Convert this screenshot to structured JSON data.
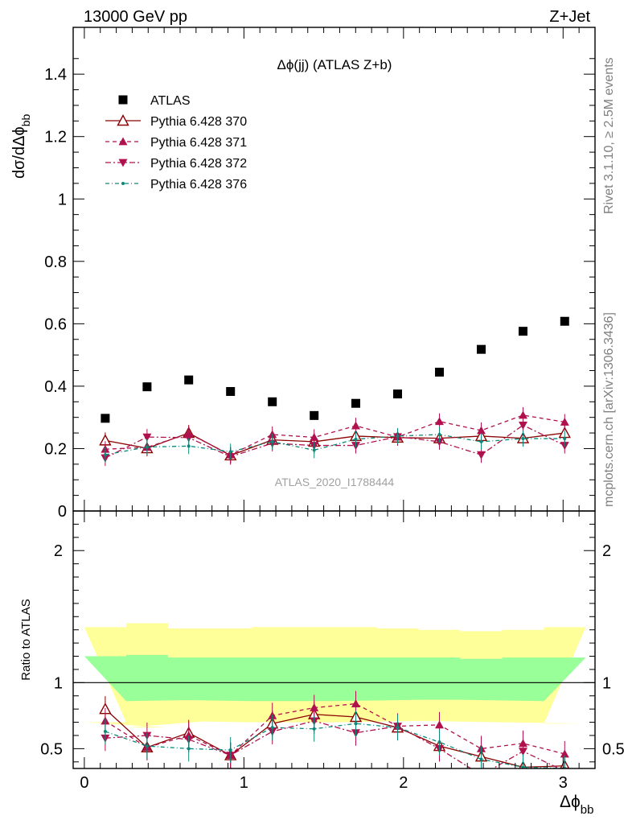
{
  "header": {
    "left": "13000 GeV pp",
    "right": "Z+Jet"
  },
  "side_text": {
    "rivet": "Rivet 3.1.10, ≥ 2.5M events",
    "mcplots": "mcplots.cern.ch [arXiv:1306.3436]"
  },
  "analysis_id": "ATLAS_2020_I1788444",
  "chart_data": [
    {
      "type": "scatter",
      "title": "Δϕ(jj) (ATLAS Z+b)",
      "ylabel_main": "dσ/dΔϕ",
      "ylabel_sub": "bb",
      "xlabel_main": "Δϕ",
      "xlabel_sub": "bb",
      "xlim": [
        -0.07,
        3.2
      ],
      "ylim": [
        0,
        1.55
      ],
      "y_ticks": [
        "0",
        "0.2",
        "0.4",
        "0.6",
        "0.8",
        "1",
        "1.2",
        "1.4"
      ],
      "y_tick_values": [
        0,
        0.2,
        0.4,
        0.6,
        0.8,
        1.0,
        1.2,
        1.4
      ],
      "x": [
        0.131,
        0.393,
        0.654,
        0.916,
        1.178,
        1.44,
        1.701,
        1.963,
        2.225,
        2.487,
        2.749,
        3.01
      ],
      "legend": [
        "ATLAS",
        "Pythia 6.428 370",
        "Pythia 6.428 371",
        "Pythia 6.428 372",
        "Pythia 6.428 376"
      ],
      "series": [
        {
          "name": "ATLAS",
          "color": "#000000",
          "marker": "square",
          "values": [
            0.297,
            0.398,
            0.42,
            0.383,
            0.35,
            0.306,
            0.345,
            0.375,
            0.445,
            0.518,
            0.576,
            0.608
          ]
        },
        {
          "name": "Pythia 6.428 370",
          "color": "#8b0000",
          "marker": "triangle-open",
          "values": [
            0.226,
            0.201,
            0.25,
            0.178,
            0.228,
            0.222,
            0.24,
            0.235,
            0.233,
            0.24,
            0.233,
            0.25
          ]
        },
        {
          "name": "Pythia 6.428 371",
          "color": "#b0104e",
          "marker": "triangle-up",
          "values": [
            0.198,
            0.204,
            0.248,
            0.18,
            0.245,
            0.236,
            0.273,
            0.237,
            0.287,
            0.258,
            0.307,
            0.285
          ]
        },
        {
          "name": "Pythia 6.428 372",
          "color": "#b0104e",
          "marker": "triangle-down",
          "values": [
            0.17,
            0.237,
            0.235,
            0.174,
            0.217,
            0.21,
            0.21,
            0.238,
            0.222,
            0.18,
            0.275,
            0.21
          ]
        },
        {
          "name": "Pythia 6.428 376",
          "color": "#0a8a7a",
          "marker": "dot",
          "values": [
            0.18,
            0.205,
            0.208,
            0.19,
            0.222,
            0.195,
            0.23,
            0.24,
            0.245,
            0.222,
            0.232,
            0.232
          ]
        }
      ]
    },
    {
      "type": "line",
      "ylabel": "Ratio to ATLAS",
      "ylim": [
        0.35,
        2.3
      ],
      "y_ticks": [
        "0.5",
        "1",
        "2"
      ],
      "y_tick_values": [
        0.5,
        1.0,
        2.0
      ],
      "x_ticks": [
        "0",
        "1",
        "2",
        "3"
      ],
      "x_tick_values": [
        0,
        1,
        2,
        3
      ],
      "band_edges": [
        0.0,
        0.262,
        0.524,
        0.785,
        1.047,
        1.309,
        1.571,
        1.833,
        2.094,
        2.356,
        2.618,
        2.88,
        3.142
      ],
      "band_1sigma": {
        "color": "#99ff99",
        "low": [
          0.86,
          0.86,
          0.87,
          0.86,
          0.86,
          0.86,
          0.86,
          0.87,
          0.87,
          0.87,
          0.86,
          0.86
        ],
        "high": [
          1.2,
          1.21,
          1.19,
          1.19,
          1.19,
          1.19,
          1.19,
          1.19,
          1.19,
          1.18,
          1.19,
          1.19
        ]
      },
      "band_2sigma": {
        "color": "#ffff99",
        "low": [
          0.7,
          0.66,
          0.71,
          0.7,
          0.7,
          0.7,
          0.7,
          0.71,
          0.71,
          0.7,
          0.7,
          0.69
        ],
        "high": [
          1.42,
          1.45,
          1.41,
          1.41,
          1.42,
          1.42,
          1.42,
          1.41,
          1.4,
          1.39,
          1.4,
          1.42
        ]
      },
      "series": [
        {
          "name": "Pythia 6.428 370",
          "values": [
            0.8,
            0.51,
            0.62,
            0.45,
            0.69,
            0.76,
            0.74,
            0.66,
            0.52,
            0.44,
            0.36,
            0.37
          ]
        },
        {
          "name": "Pythia 6.428 371",
          "values": [
            0.71,
            0.51,
            0.6,
            0.45,
            0.75,
            0.81,
            0.84,
            0.67,
            0.68,
            0.5,
            0.54,
            0.46
          ]
        },
        {
          "name": "Pythia 6.428 372",
          "values": [
            0.58,
            0.6,
            0.57,
            0.45,
            0.63,
            0.71,
            0.62,
            0.67,
            0.5,
            0.3,
            0.48,
            0.33
          ]
        },
        {
          "name": "Pythia 6.428 376",
          "values": [
            0.63,
            0.52,
            0.5,
            0.49,
            0.66,
            0.65,
            0.69,
            0.66,
            0.55,
            0.42,
            0.36,
            0.35
          ]
        }
      ]
    }
  ]
}
